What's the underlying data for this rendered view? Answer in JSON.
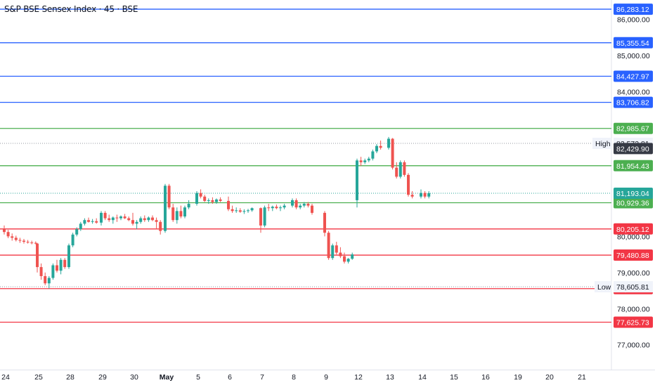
{
  "chart_data": {
    "type": "candlestick",
    "title": "S&P BSE Sensex Index · 45 · BSE",
    "colors": {
      "up": "#26a69a",
      "down": "#ef5350",
      "resistance": "#2962ff",
      "green_level": "#4caf50",
      "support": "#f23645",
      "current": "#26a69a",
      "axis_text": "#131722"
    },
    "y_range": [
      76300,
      86550
    ],
    "y_ticks": [
      {
        "value": 77000,
        "label": "77,000.00"
      },
      {
        "value": 78000,
        "label": "78,000.00"
      },
      {
        "value": 79000,
        "label": "79,000.00"
      },
      {
        "value": 80000,
        "label": "80,000.00"
      },
      {
        "value": 84000,
        "label": "84,000.00"
      },
      {
        "value": 85000,
        "label": "85,000.00"
      },
      {
        "value": 86000,
        "label": "86,000.00"
      }
    ],
    "x_ticks": [
      {
        "label": "24",
        "bold": false
      },
      {
        "label": "25",
        "bold": false
      },
      {
        "label": "28",
        "bold": false
      },
      {
        "label": "29",
        "bold": false
      },
      {
        "label": "30",
        "bold": false
      },
      {
        "label": "May",
        "bold": true
      },
      {
        "label": "5",
        "bold": false
      },
      {
        "label": "6",
        "bold": false
      },
      {
        "label": "7",
        "bold": false
      },
      {
        "label": "8",
        "bold": false
      },
      {
        "label": "9",
        "bold": false
      },
      {
        "label": "12",
        "bold": false
      },
      {
        "label": "13",
        "bold": false
      },
      {
        "label": "14",
        "bold": false
      },
      {
        "label": "15",
        "bold": false
      },
      {
        "label": "16",
        "bold": false
      },
      {
        "label": "19",
        "bold": false
      },
      {
        "label": "20",
        "bold": false
      },
      {
        "label": "21",
        "bold": false
      }
    ],
    "levels": [
      {
        "value": 86283.12,
        "label": "86,283.12",
        "kind": "resistance"
      },
      {
        "value": 85355.54,
        "label": "85,355.54",
        "kind": "resistance"
      },
      {
        "value": 84427.97,
        "label": "84,427.97",
        "kind": "resistance"
      },
      {
        "value": 83706.82,
        "label": "83,706.82",
        "kind": "resistance"
      },
      {
        "value": 82985.67,
        "label": "82,985.67",
        "kind": "green_level"
      },
      {
        "value": 81954.43,
        "label": "81,954.43",
        "kind": "green_level"
      },
      {
        "value": 80929.36,
        "label": "80,929.36",
        "kind": "green_level"
      },
      {
        "value": 80205.12,
        "label": "80,205.12",
        "kind": "support"
      },
      {
        "value": 79480.88,
        "label": "79,480.88",
        "kind": "support"
      },
      {
        "value": 78553.31,
        "label": "78,553.31",
        "kind": "support"
      },
      {
        "value": 77625.73,
        "label": "77,625.73",
        "kind": "support"
      }
    ],
    "markers": [
      {
        "name": "high",
        "tag": "High",
        "value": 82572.81,
        "label": "82,572.81"
      },
      {
        "name": "prev-close",
        "tag": "",
        "value": 82429.9,
        "label": "82,429.90"
      },
      {
        "name": "last-price",
        "tag": "",
        "value": 81193.04,
        "label": "81,193.04"
      },
      {
        "name": "low",
        "tag": "Low",
        "value": 78605.81,
        "label": "78,605.81"
      }
    ],
    "candles": [
      {
        "t": "24",
        "o": 80200,
        "h": 80300,
        "l": 80050,
        "c": 80120
      },
      {
        "t": "24",
        "o": 80120,
        "h": 80180,
        "l": 79950,
        "c": 80000
      },
      {
        "t": "24",
        "o": 80000,
        "h": 80080,
        "l": 79880,
        "c": 79960
      },
      {
        "t": "24",
        "o": 79960,
        "h": 80020,
        "l": 79860,
        "c": 79900
      },
      {
        "t": "24",
        "o": 79900,
        "h": 79960,
        "l": 79820,
        "c": 79880
      },
      {
        "t": "24",
        "o": 79880,
        "h": 79930,
        "l": 79800,
        "c": 79850
      },
      {
        "t": "24",
        "o": 79850,
        "h": 79900,
        "l": 79800,
        "c": 79830
      },
      {
        "t": "24",
        "o": 79830,
        "h": 79880,
        "l": 79780,
        "c": 79820
      },
      {
        "t": "24",
        "o": 79820,
        "h": 79860,
        "l": 79780,
        "c": 79800
      },
      {
        "t": "25",
        "o": 79800,
        "h": 79820,
        "l": 79000,
        "c": 79150
      },
      {
        "t": "25",
        "o": 79150,
        "h": 79250,
        "l": 78800,
        "c": 78900
      },
      {
        "t": "25",
        "o": 78900,
        "h": 79000,
        "l": 78650,
        "c": 78700
      },
      {
        "t": "25",
        "o": 78700,
        "h": 78900,
        "l": 78560,
        "c": 78850
      },
      {
        "t": "25",
        "o": 78850,
        "h": 79250,
        "l": 78800,
        "c": 79200
      },
      {
        "t": "25",
        "o": 79200,
        "h": 79350,
        "l": 79000,
        "c": 79050
      },
      {
        "t": "25",
        "o": 79050,
        "h": 79400,
        "l": 78950,
        "c": 79350
      },
      {
        "t": "25",
        "o": 79350,
        "h": 79400,
        "l": 79100,
        "c": 79150
      },
      {
        "t": "28",
        "o": 79150,
        "h": 79800,
        "l": 79100,
        "c": 79750
      },
      {
        "t": "28",
        "o": 79750,
        "h": 80100,
        "l": 79700,
        "c": 80050
      },
      {
        "t": "28",
        "o": 80050,
        "h": 80250,
        "l": 80000,
        "c": 80200
      },
      {
        "t": "28",
        "o": 80200,
        "h": 80400,
        "l": 80150,
        "c": 80350
      },
      {
        "t": "28",
        "o": 80350,
        "h": 80500,
        "l": 80300,
        "c": 80450
      },
      {
        "t": "28",
        "o": 80450,
        "h": 80520,
        "l": 80380,
        "c": 80400
      },
      {
        "t": "28",
        "o": 80400,
        "h": 80480,
        "l": 80350,
        "c": 80420
      },
      {
        "t": "28",
        "o": 80420,
        "h": 80500,
        "l": 80350,
        "c": 80380
      },
      {
        "t": "29",
        "o": 80380,
        "h": 80700,
        "l": 80300,
        "c": 80650
      },
      {
        "t": "29",
        "o": 80650,
        "h": 80700,
        "l": 80450,
        "c": 80500
      },
      {
        "t": "29",
        "o": 80500,
        "h": 80600,
        "l": 80400,
        "c": 80450
      },
      {
        "t": "29",
        "o": 80450,
        "h": 80550,
        "l": 80350,
        "c": 80520
      },
      {
        "t": "29",
        "o": 80520,
        "h": 80600,
        "l": 80400,
        "c": 80500
      },
      {
        "t": "29",
        "o": 80500,
        "h": 80580,
        "l": 80450,
        "c": 80550
      },
      {
        "t": "29",
        "o": 80550,
        "h": 80620,
        "l": 80480,
        "c": 80500
      },
      {
        "t": "29",
        "o": 80500,
        "h": 80550,
        "l": 80420,
        "c": 80450
      },
      {
        "t": "30",
        "o": 80450,
        "h": 80650,
        "l": 80300,
        "c": 80350
      },
      {
        "t": "30",
        "o": 80350,
        "h": 80450,
        "l": 80200,
        "c": 80400
      },
      {
        "t": "30",
        "o": 80400,
        "h": 80550,
        "l": 80350,
        "c": 80500
      },
      {
        "t": "30",
        "o": 80500,
        "h": 80580,
        "l": 80400,
        "c": 80450
      },
      {
        "t": "30",
        "o": 80450,
        "h": 80550,
        "l": 80400,
        "c": 80520
      },
      {
        "t": "30",
        "o": 80520,
        "h": 80580,
        "l": 80420,
        "c": 80450
      },
      {
        "t": "30",
        "o": 80450,
        "h": 80520,
        "l": 80200,
        "c": 80400
      },
      {
        "t": "30",
        "o": 80400,
        "h": 80450,
        "l": 80050,
        "c": 80150
      },
      {
        "t": "May",
        "o": 80150,
        "h": 81450,
        "l": 80100,
        "c": 81400
      },
      {
        "t": "May",
        "o": 81400,
        "h": 81450,
        "l": 80750,
        "c": 80800
      },
      {
        "t": "May",
        "o": 80800,
        "h": 80900,
        "l": 80400,
        "c": 80450
      },
      {
        "t": "May",
        "o": 80450,
        "h": 80800,
        "l": 80350,
        "c": 80700
      },
      {
        "t": "May",
        "o": 80700,
        "h": 80850,
        "l": 80500,
        "c": 80550
      },
      {
        "t": "May",
        "o": 80550,
        "h": 80850,
        "l": 80500,
        "c": 80800
      },
      {
        "t": "May",
        "o": 80800,
        "h": 81000,
        "l": 80750,
        "c": 80900
      },
      {
        "t": "5",
        "o": 80900,
        "h": 81250,
        "l": 80850,
        "c": 81200
      },
      {
        "t": "5",
        "o": 81200,
        "h": 81300,
        "l": 81050,
        "c": 81100
      },
      {
        "t": "5",
        "o": 81100,
        "h": 81150,
        "l": 80950,
        "c": 80980
      },
      {
        "t": "5",
        "o": 80980,
        "h": 81050,
        "l": 80900,
        "c": 81000
      },
      {
        "t": "5",
        "o": 81000,
        "h": 81080,
        "l": 80900,
        "c": 80950
      },
      {
        "t": "5",
        "o": 80950,
        "h": 81050,
        "l": 80900,
        "c": 81020
      },
      {
        "t": "5",
        "o": 81020,
        "h": 81080,
        "l": 80950,
        "c": 80980
      },
      {
        "t": "6",
        "o": 80980,
        "h": 81100,
        "l": 80700,
        "c": 80750
      },
      {
        "t": "6",
        "o": 80750,
        "h": 80850,
        "l": 80650,
        "c": 80700
      },
      {
        "t": "6",
        "o": 80700,
        "h": 80800,
        "l": 80650,
        "c": 80720
      },
      {
        "t": "6",
        "o": 80720,
        "h": 80780,
        "l": 80650,
        "c": 80680
      },
      {
        "t": "6",
        "o": 80680,
        "h": 80750,
        "l": 80620,
        "c": 80700
      },
      {
        "t": "6",
        "o": 80700,
        "h": 80760,
        "l": 80650,
        "c": 80720
      },
      {
        "t": "6",
        "o": 80720,
        "h": 80800,
        "l": 80680,
        "c": 80780
      },
      {
        "t": "7",
        "o": 80780,
        "h": 80800,
        "l": 80100,
        "c": 80300
      },
      {
        "t": "7",
        "o": 80300,
        "h": 80850,
        "l": 80250,
        "c": 80800
      },
      {
        "t": "7",
        "o": 80800,
        "h": 80900,
        "l": 80700,
        "c": 80780
      },
      {
        "t": "7",
        "o": 80780,
        "h": 80850,
        "l": 80700,
        "c": 80820
      },
      {
        "t": "7",
        "o": 80820,
        "h": 80880,
        "l": 80750,
        "c": 80780
      },
      {
        "t": "7",
        "o": 80780,
        "h": 80850,
        "l": 80700,
        "c": 80800
      },
      {
        "t": "7",
        "o": 80800,
        "h": 80900,
        "l": 80750,
        "c": 80850
      },
      {
        "t": "8",
        "o": 80850,
        "h": 81050,
        "l": 80800,
        "c": 81000
      },
      {
        "t": "8",
        "o": 81000,
        "h": 81050,
        "l": 80750,
        "c": 80800
      },
      {
        "t": "8",
        "o": 80800,
        "h": 80900,
        "l": 80750,
        "c": 80850
      },
      {
        "t": "8",
        "o": 80850,
        "h": 80950,
        "l": 80800,
        "c": 80900
      },
      {
        "t": "8",
        "o": 80900,
        "h": 80950,
        "l": 80800,
        "c": 80850
      },
      {
        "t": "8",
        "o": 80850,
        "h": 80900,
        "l": 80600,
        "c": 80650
      },
      {
        "t": "9",
        "o": 80650,
        "h": 80700,
        "l": 80000,
        "c": 80100
      },
      {
        "t": "9",
        "o": 80100,
        "h": 80150,
        "l": 79350,
        "c": 79400
      },
      {
        "t": "9",
        "o": 79400,
        "h": 79800,
        "l": 79350,
        "c": 79750
      },
      {
        "t": "9",
        "o": 79750,
        "h": 79850,
        "l": 79500,
        "c": 79550
      },
      {
        "t": "9",
        "o": 79550,
        "h": 79700,
        "l": 79400,
        "c": 79450
      },
      {
        "t": "9",
        "o": 79450,
        "h": 79550,
        "l": 79250,
        "c": 79300
      },
      {
        "t": "9",
        "o": 79300,
        "h": 79400,
        "l": 79250,
        "c": 79380
      },
      {
        "t": "9",
        "o": 79380,
        "h": 79550,
        "l": 79350,
        "c": 79500
      },
      {
        "t": "12",
        "o": 81000,
        "h": 82150,
        "l": 80800,
        "c": 82100
      },
      {
        "t": "12",
        "o": 82100,
        "h": 82200,
        "l": 81950,
        "c": 82050
      },
      {
        "t": "12",
        "o": 82050,
        "h": 82150,
        "l": 82000,
        "c": 82100
      },
      {
        "t": "12",
        "o": 82100,
        "h": 82200,
        "l": 82050,
        "c": 82150
      },
      {
        "t": "12",
        "o": 82150,
        "h": 82400,
        "l": 82100,
        "c": 82350
      },
      {
        "t": "12",
        "o": 82350,
        "h": 82550,
        "l": 82300,
        "c": 82500
      },
      {
        "t": "12",
        "o": 82500,
        "h": 82650,
        "l": 82400,
        "c": 82450
      },
      {
        "t": "13",
        "o": 82450,
        "h": 82750,
        "l": 82400,
        "c": 82700
      },
      {
        "t": "13",
        "o": 82700,
        "h": 82720,
        "l": 81850,
        "c": 81900
      },
      {
        "t": "13",
        "o": 81900,
        "h": 82050,
        "l": 81600,
        "c": 81650
      },
      {
        "t": "13",
        "o": 81650,
        "h": 82100,
        "l": 81600,
        "c": 82050
      },
      {
        "t": "13",
        "o": 82050,
        "h": 82100,
        "l": 81650,
        "c": 81700
      },
      {
        "t": "13",
        "o": 81700,
        "h": 81750,
        "l": 81100,
        "c": 81150
      },
      {
        "t": "13",
        "o": 81150,
        "h": 81250,
        "l": 81050,
        "c": 81100
      },
      {
        "t": "14",
        "o": 81100,
        "h": 81300,
        "l": 81050,
        "c": 81200
      },
      {
        "t": "14",
        "o": 81200,
        "h": 81250,
        "l": 81050,
        "c": 81100
      },
      {
        "t": "14",
        "o": 81100,
        "h": 81250,
        "l": 81050,
        "c": 81193
      }
    ]
  }
}
